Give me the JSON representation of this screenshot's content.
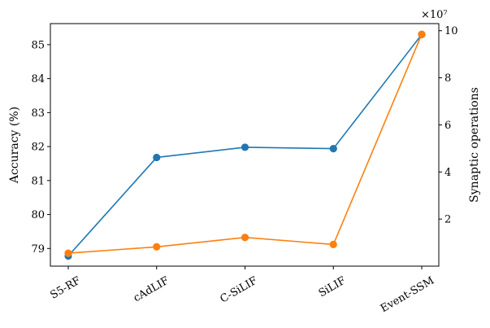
{
  "chart_data": {
    "type": "line",
    "categories": [
      "S5-RF",
      "cAdLIF",
      "C-SiLIF",
      "SiLIF",
      "Event-SSM"
    ],
    "title": "",
    "xlabel": "",
    "ylabel": "Accuracy (%)",
    "y2label": "Synaptic operations",
    "y2_multiplier_label": "×10⁷",
    "ylim": [
      78.48,
      85.62
    ],
    "y2lim": [
      0.0,
      1.0302
    ],
    "y_ticks": [
      "79",
      "80",
      "81",
      "82",
      "83",
      "84",
      "85"
    ],
    "y2_ticks": [
      "2",
      "4",
      "6",
      "8",
      "10"
    ],
    "y2_tick_values": [
      0.2,
      0.4,
      0.6,
      0.8,
      1.0
    ],
    "grid": false,
    "legend": "none",
    "series": [
      {
        "axis": "left",
        "color": "#1f77b4",
        "marker": "circle",
        "values": [
          78.78,
          81.68,
          81.98,
          81.94,
          85.3
        ]
      },
      {
        "axis": "right",
        "color": "#ff7f0e",
        "marker": "circle",
        "values": [
          0.055,
          0.082,
          0.122,
          0.092,
          0.985
        ]
      }
    ]
  }
}
